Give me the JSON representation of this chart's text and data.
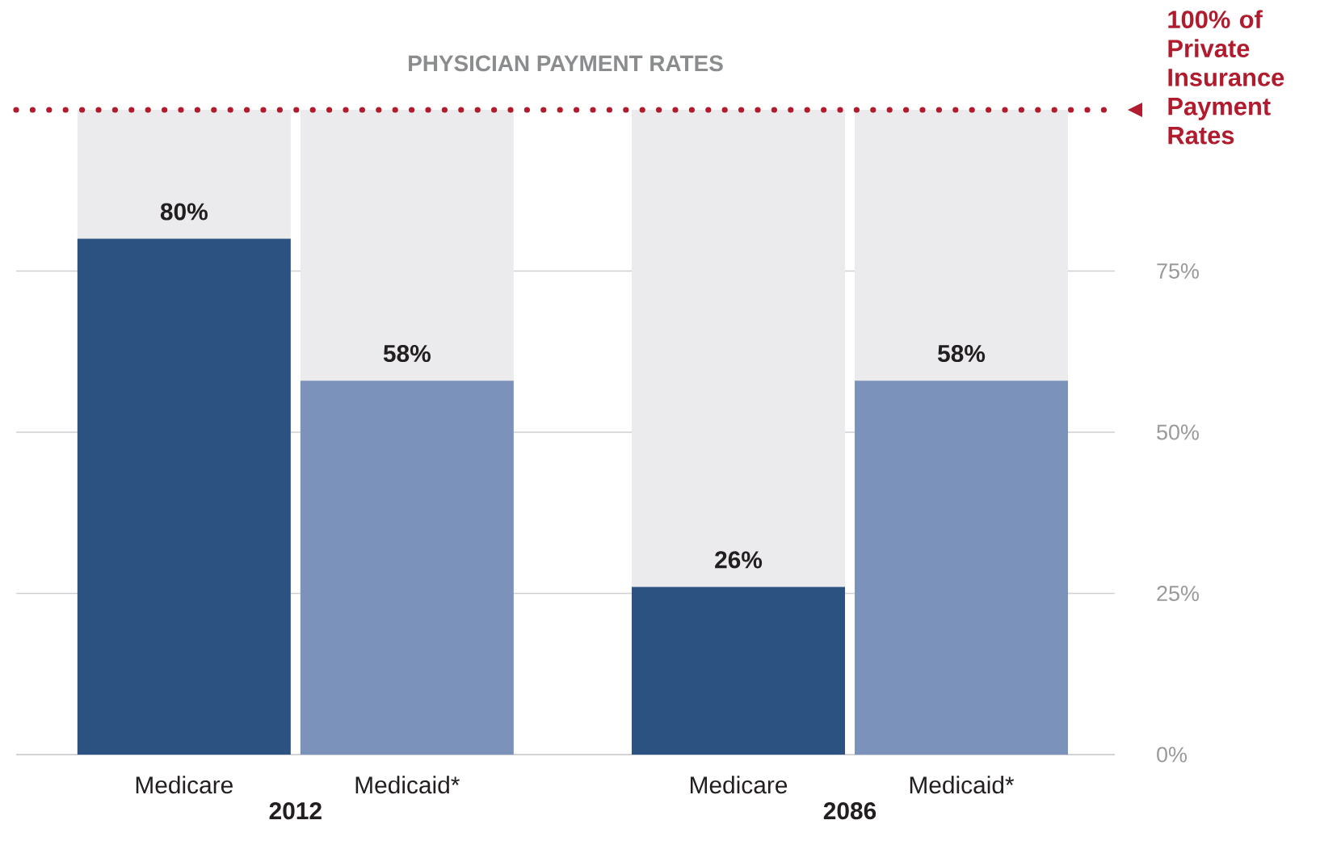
{
  "chart_data": {
    "type": "bar",
    "title": "PHYSICIAN PAYMENT RATES",
    "categories": [
      "2012",
      "2086"
    ],
    "series": [
      {
        "name": "Medicare",
        "color": "#2c5282",
        "values": [
          80,
          26
        ],
        "value_labels": [
          "80%",
          "26%"
        ]
      },
      {
        "name": "Medicaid*",
        "color": "#7b93ba",
        "values": [
          58,
          58
        ],
        "value_labels": [
          "58%",
          "58%"
        ]
      }
    ],
    "ylim": [
      0,
      100
    ],
    "yticks": [
      {
        "value": 0,
        "label": "0%"
      },
      {
        "value": 25,
        "label": "25%"
      },
      {
        "value": 50,
        "label": "50%"
      },
      {
        "value": 75,
        "label": "75%"
      }
    ],
    "grid": "y",
    "ref_lines": [
      {
        "axis": "y",
        "value": 100,
        "label": "100% of Private Insurance Payment Rates",
        "color": "#b01c2e",
        "line_style": "dotted"
      }
    ]
  }
}
